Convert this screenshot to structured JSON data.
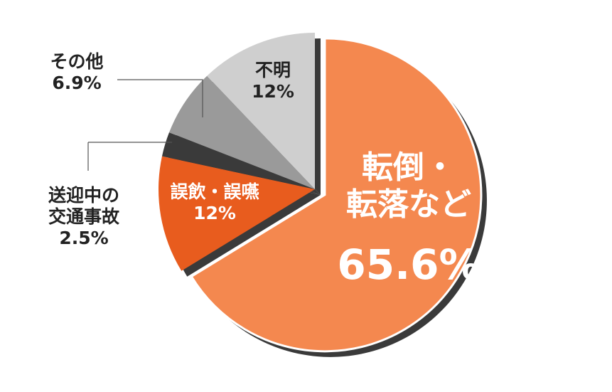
{
  "chart_data": {
    "type": "pie",
    "slices": [
      {
        "name": "転倒・転落など",
        "name_lines": [
          "転倒・",
          "転落など"
        ],
        "value": 65.6,
        "value_label": "65.6%",
        "color": "#f4884f",
        "exploded": true
      },
      {
        "name": "誤飲・誤嚥",
        "name_lines": [
          "誤飲・誤嚥"
        ],
        "value": 12,
        "value_label": "12%",
        "color": "#e85c1e"
      },
      {
        "name": "送迎中の交通事故",
        "name_lines": [
          "送迎中の",
          "交通事故"
        ],
        "value": 2.5,
        "value_label": "2.5%",
        "color": "#3a3a3a"
      },
      {
        "name": "その他",
        "name_lines": [
          "その他"
        ],
        "value": 6.9,
        "value_label": "6.9%",
        "color": "#9a9a9a"
      },
      {
        "name": "不明",
        "name_lines": [
          "不明"
        ],
        "value": 12,
        "value_label": "12%",
        "color": "#cfcfcf"
      }
    ],
    "start_angle": "12 o'clock",
    "direction": "clockwise",
    "shadow_color": "#3a3a3a"
  }
}
